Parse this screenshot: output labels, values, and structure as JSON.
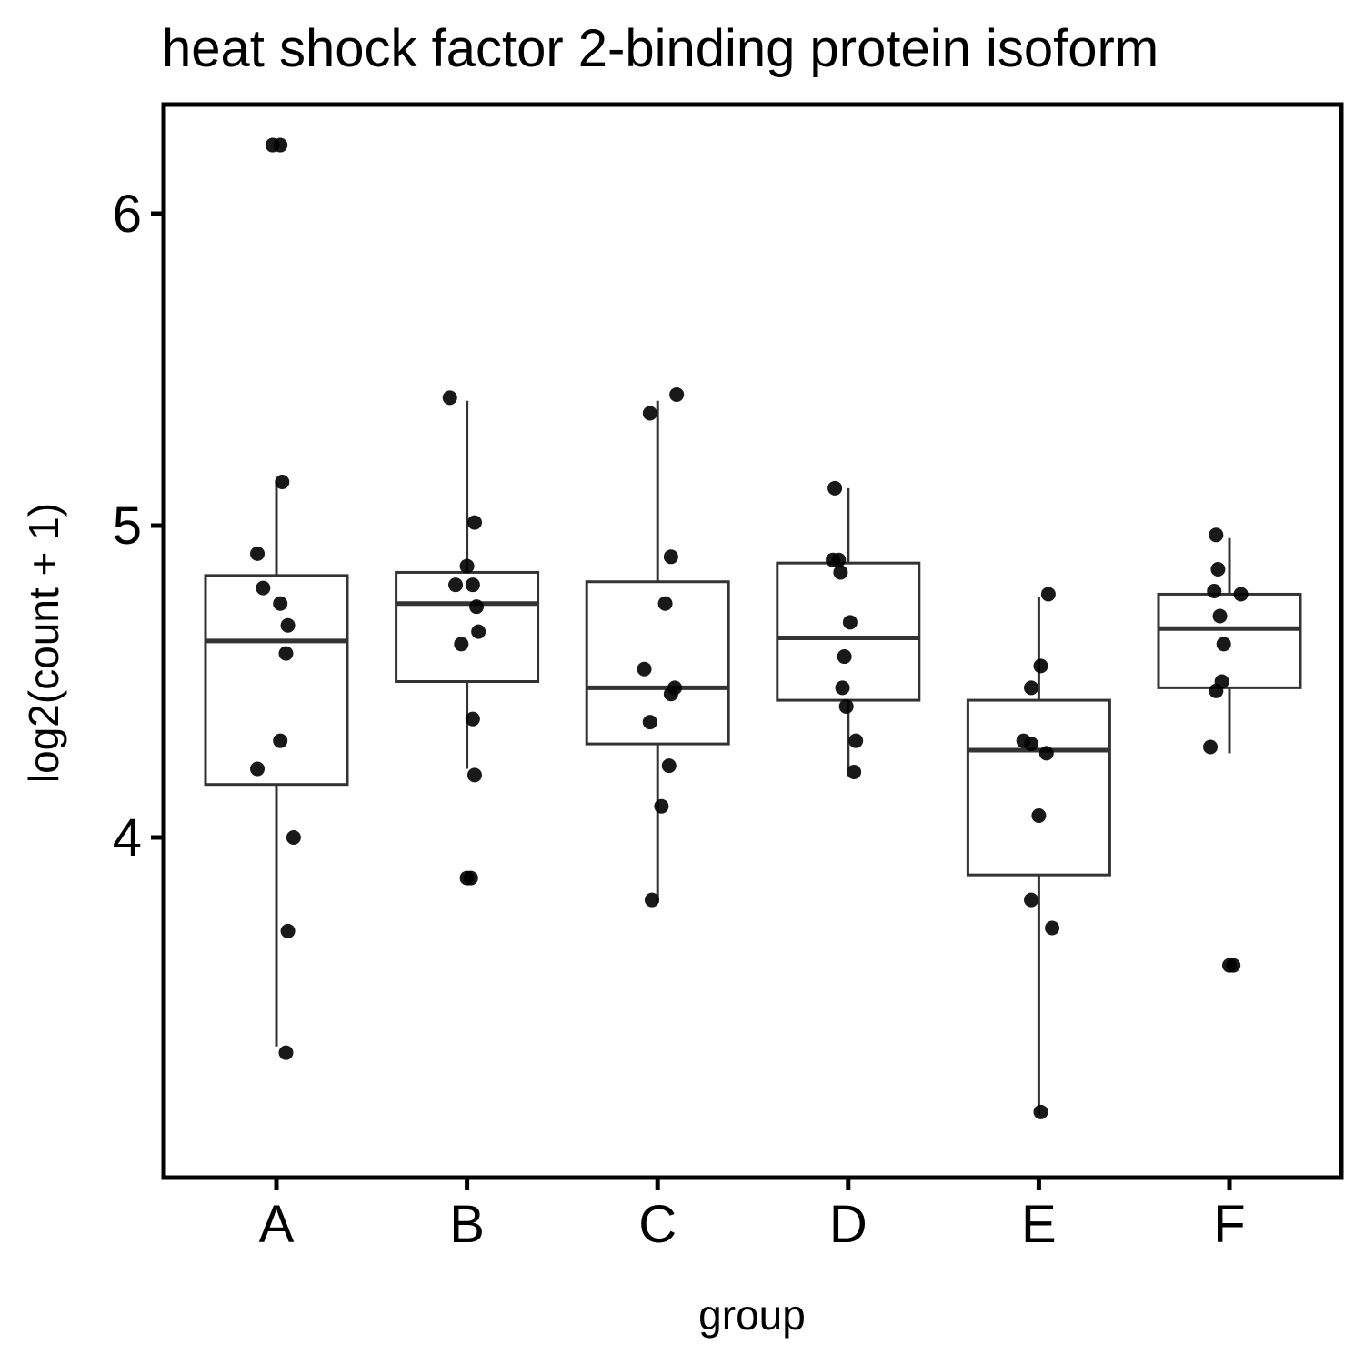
{
  "chart_data": {
    "type": "box",
    "title": "heat shock factor 2-binding protein isoform",
    "xlabel": "group",
    "ylabel": "log2(count + 1)",
    "ylim": [
      2.8,
      6.35
    ],
    "yticks": [
      4,
      5,
      6
    ],
    "categories": [
      "A",
      "B",
      "C",
      "D",
      "E",
      "F"
    ],
    "grid": false,
    "boxes": [
      {
        "group": "A",
        "lower_whisker": 3.33,
        "q1": 4.17,
        "median": 4.63,
        "q3": 4.84,
        "upper_whisker": 5.14
      },
      {
        "group": "B",
        "lower_whisker": 4.22,
        "q1": 4.5,
        "median": 4.75,
        "q3": 4.85,
        "upper_whisker": 5.4
      },
      {
        "group": "C",
        "lower_whisker": 3.79,
        "q1": 4.3,
        "median": 4.48,
        "q3": 4.82,
        "upper_whisker": 5.4
      },
      {
        "group": "D",
        "lower_whisker": 4.22,
        "q1": 4.44,
        "median": 4.64,
        "q3": 4.88,
        "upper_whisker": 5.12
      },
      {
        "group": "E",
        "lower_whisker": 3.11,
        "q1": 3.88,
        "median": 4.28,
        "q3": 4.44,
        "upper_whisker": 4.77
      },
      {
        "group": "F",
        "lower_whisker": 4.27,
        "q1": 4.48,
        "median": 4.67,
        "q3": 4.78,
        "upper_whisker": 4.96
      }
    ],
    "points": [
      {
        "group": "A",
        "jitter": 0.02,
        "y": 6.22
      },
      {
        "group": "A",
        "jitter": -0.02,
        "y": 6.22
      },
      {
        "group": "A",
        "jitter": 0.03,
        "y": 5.14
      },
      {
        "group": "A",
        "jitter": -0.1,
        "y": 4.91
      },
      {
        "group": "A",
        "jitter": -0.07,
        "y": 4.8
      },
      {
        "group": "A",
        "jitter": 0.02,
        "y": 4.75
      },
      {
        "group": "A",
        "jitter": 0.06,
        "y": 4.68
      },
      {
        "group": "A",
        "jitter": 0.05,
        "y": 4.59
      },
      {
        "group": "A",
        "jitter": 0.02,
        "y": 4.31
      },
      {
        "group": "A",
        "jitter": -0.1,
        "y": 4.22
      },
      {
        "group": "A",
        "jitter": 0.09,
        "y": 4.0
      },
      {
        "group": "A",
        "jitter": 0.06,
        "y": 3.7
      },
      {
        "group": "A",
        "jitter": 0.05,
        "y": 3.31
      },
      {
        "group": "B",
        "jitter": -0.09,
        "y": 5.41
      },
      {
        "group": "B",
        "jitter": 0.04,
        "y": 5.01
      },
      {
        "group": "B",
        "jitter": 0.0,
        "y": 4.87
      },
      {
        "group": "B",
        "jitter": -0.06,
        "y": 4.81
      },
      {
        "group": "B",
        "jitter": 0.03,
        "y": 4.81
      },
      {
        "group": "B",
        "jitter": 0.05,
        "y": 4.74
      },
      {
        "group": "B",
        "jitter": 0.06,
        "y": 4.66
      },
      {
        "group": "B",
        "jitter": -0.03,
        "y": 4.62
      },
      {
        "group": "B",
        "jitter": 0.03,
        "y": 4.38
      },
      {
        "group": "B",
        "jitter": 0.04,
        "y": 4.2
      },
      {
        "group": "B",
        "jitter": 0.0,
        "y": 3.87
      },
      {
        "group": "B",
        "jitter": 0.02,
        "y": 3.87
      },
      {
        "group": "C",
        "jitter": 0.1,
        "y": 5.42
      },
      {
        "group": "C",
        "jitter": -0.04,
        "y": 5.36
      },
      {
        "group": "C",
        "jitter": 0.07,
        "y": 4.9
      },
      {
        "group": "C",
        "jitter": 0.04,
        "y": 4.75
      },
      {
        "group": "C",
        "jitter": -0.07,
        "y": 4.54
      },
      {
        "group": "C",
        "jitter": 0.09,
        "y": 4.48
      },
      {
        "group": "C",
        "jitter": 0.07,
        "y": 4.46
      },
      {
        "group": "C",
        "jitter": -0.04,
        "y": 4.37
      },
      {
        "group": "C",
        "jitter": 0.06,
        "y": 4.23
      },
      {
        "group": "C",
        "jitter": 0.02,
        "y": 4.1
      },
      {
        "group": "C",
        "jitter": -0.03,
        "y": 3.8
      },
      {
        "group": "D",
        "jitter": -0.07,
        "y": 5.12
      },
      {
        "group": "D",
        "jitter": -0.08,
        "y": 4.89
      },
      {
        "group": "D",
        "jitter": -0.05,
        "y": 4.89
      },
      {
        "group": "D",
        "jitter": -0.04,
        "y": 4.85
      },
      {
        "group": "D",
        "jitter": 0.01,
        "y": 4.69
      },
      {
        "group": "D",
        "jitter": -0.02,
        "y": 4.58
      },
      {
        "group": "D",
        "jitter": -0.03,
        "y": 4.48
      },
      {
        "group": "D",
        "jitter": -0.01,
        "y": 4.42
      },
      {
        "group": "D",
        "jitter": 0.04,
        "y": 4.31
      },
      {
        "group": "D",
        "jitter": 0.03,
        "y": 4.21
      },
      {
        "group": "E",
        "jitter": 0.05,
        "y": 4.78
      },
      {
        "group": "E",
        "jitter": 0.01,
        "y": 4.55
      },
      {
        "group": "E",
        "jitter": -0.04,
        "y": 4.48
      },
      {
        "group": "E",
        "jitter": -0.08,
        "y": 4.31
      },
      {
        "group": "E",
        "jitter": -0.04,
        "y": 4.3
      },
      {
        "group": "E",
        "jitter": 0.04,
        "y": 4.27
      },
      {
        "group": "E",
        "jitter": 0.0,
        "y": 4.07
      },
      {
        "group": "E",
        "jitter": -0.04,
        "y": 3.8
      },
      {
        "group": "E",
        "jitter": 0.07,
        "y": 3.71
      },
      {
        "group": "E",
        "jitter": 0.01,
        "y": 3.12
      },
      {
        "group": "F",
        "jitter": -0.07,
        "y": 4.97
      },
      {
        "group": "F",
        "jitter": -0.06,
        "y": 4.86
      },
      {
        "group": "F",
        "jitter": -0.08,
        "y": 4.79
      },
      {
        "group": "F",
        "jitter": 0.06,
        "y": 4.78
      },
      {
        "group": "F",
        "jitter": -0.05,
        "y": 4.71
      },
      {
        "group": "F",
        "jitter": -0.03,
        "y": 4.62
      },
      {
        "group": "F",
        "jitter": -0.04,
        "y": 4.5
      },
      {
        "group": "F",
        "jitter": -0.07,
        "y": 4.47
      },
      {
        "group": "F",
        "jitter": -0.1,
        "y": 4.29
      },
      {
        "group": "F",
        "jitter": 0.0,
        "y": 3.59
      },
      {
        "group": "F",
        "jitter": 0.02,
        "y": 3.59
      }
    ]
  }
}
